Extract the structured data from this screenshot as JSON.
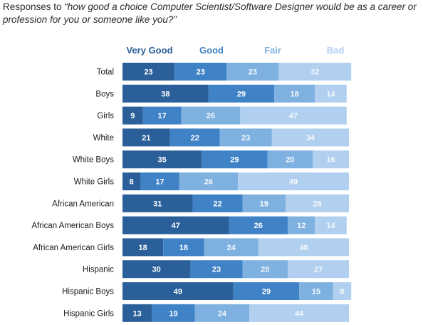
{
  "title": {
    "prefix": "Responses to ",
    "question": "“how good a choice Computer Scientist/Software Designer would be as a career or profession for you or someone like you?”"
  },
  "colors": {
    "very_good": "#2a5f9a",
    "good": "#3f82c6",
    "fair": "#7fb1e0",
    "bad": "#b1d0f0",
    "row_label": "#1a1a1a",
    "value_dark": "#ffffff",
    "value_light": "#f4f8fc"
  },
  "chart_data": {
    "type": "bar",
    "orientation": "horizontal",
    "stacked": true,
    "xlim": [
      0,
      100
    ],
    "legend_position": "top",
    "categories": [
      "Total",
      "Boys",
      "Girls",
      "White",
      "White Boys",
      "White Girls",
      "African American",
      "African American Boys",
      "African American Girls",
      "Hispanic",
      "Hispanic Boys",
      "Hispanic Girls"
    ],
    "series": [
      {
        "name": "Very Good",
        "key": "very_good",
        "values": [
          23,
          38,
          9,
          21,
          35,
          8,
          31,
          47,
          18,
          30,
          49,
          13
        ]
      },
      {
        "name": "Good",
        "key": "good",
        "values": [
          23,
          29,
          17,
          22,
          29,
          17,
          22,
          26,
          18,
          23,
          29,
          19
        ]
      },
      {
        "name": "Fair",
        "key": "fair",
        "values": [
          23,
          18,
          26,
          23,
          20,
          26,
          19,
          12,
          24,
          20,
          15,
          24
        ]
      },
      {
        "name": "Bad",
        "key": "bad",
        "values": [
          32,
          14,
          47,
          34,
          16,
          49,
          28,
          14,
          40,
          27,
          8,
          44
        ]
      }
    ]
  }
}
